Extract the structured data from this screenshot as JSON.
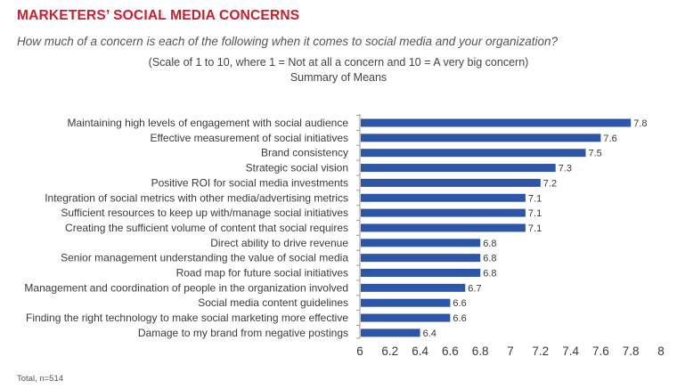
{
  "header": {
    "title": "MARKETERS’ SOCIAL MEDIA CONCERNS",
    "subtitle": "How much of a concern is each of the following when it comes to social media and your organization?",
    "scale_note": "(Scale of 1 to 10, where 1 = Not at all a concern and 10 = A very big concern)",
    "summary": "Summary of Means"
  },
  "footnote": "Total, n=514",
  "colors": {
    "bar": "#2e56a6",
    "title": "#c8202f"
  },
  "chart_data": {
    "type": "bar",
    "orientation": "horizontal",
    "categories": [
      "Maintaining high levels of engagement with social audience",
      "Effective measurement of social initiatives",
      "Brand consistency",
      "Strategic social vision",
      "Positive ROI for social media investments",
      "Integration of social metrics with other media/advertising metrics",
      "Sufficient resources to keep up with/manage social initiatives",
      "Creating the sufficient volume of content that social requires",
      "Direct ability to drive revenue",
      "Senior management understanding the value of social media",
      "Road map for future social initiatives",
      "Management and coordination of people in the organization involved",
      "Social media content guidelines",
      "Finding the right technology to make social marketing more effective",
      "Damage to my brand from negative postings"
    ],
    "values": [
      7.8,
      7.6,
      7.5,
      7.3,
      7.2,
      7.1,
      7.1,
      7.1,
      6.8,
      6.8,
      6.8,
      6.7,
      6.6,
      6.6,
      6.4
    ],
    "value_labels": [
      "7.8",
      "7.6",
      "7.5",
      "7.3",
      "7.2",
      "7.1",
      "7.1",
      "7.1",
      "6.8",
      "6.8",
      "6.8",
      "6.7",
      "6.6",
      "6.6",
      "6.4"
    ],
    "xlim": [
      6,
      8
    ],
    "xticks": [
      "6",
      "6.2",
      "6.4",
      "6.6",
      "6.8",
      "7",
      "7.2",
      "7.4",
      "7.6",
      "7.8",
      "8"
    ],
    "grid": false
  }
}
